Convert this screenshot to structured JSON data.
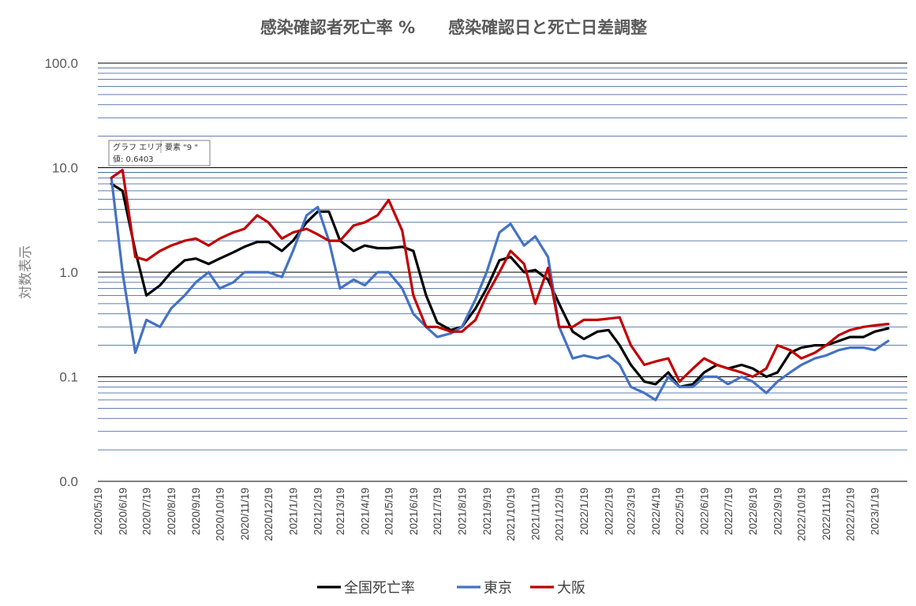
{
  "chart_data": {
    "type": "line",
    "title": "感染確認者死亡率 %　　感染確認日と死亡日差調整",
    "ylabel": "対数表示",
    "xlabel": "",
    "yscale": "log",
    "ylim": [
      0.01,
      100
    ],
    "grid": true,
    "legend_position": "bottom",
    "y_ticks": [
      {
        "value": 100,
        "label": "100.0"
      },
      {
        "value": 10,
        "label": "10.0"
      },
      {
        "value": 1,
        "label": "1.0"
      },
      {
        "value": 0.1,
        "label": "0.1"
      },
      {
        "value": 0.01,
        "label": "0.0"
      }
    ],
    "x_tick_labels": [
      "2020/5/19",
      "2020/6/19",
      "2020/7/19",
      "2020/8/19",
      "2020/9/19",
      "2020/10/19",
      "2020/11/19",
      "2020/12/19",
      "2021/1/19",
      "2021/2/19",
      "2021/3/19",
      "2021/4/19",
      "2021/5/19",
      "2021/6/19",
      "2021/7/19",
      "2021/8/19",
      "2021/9/19",
      "2021/10/19",
      "2021/11/19",
      "2021/12/19",
      "2022/1/19",
      "2022/2/19",
      "2022/3/19",
      "2022/4/19",
      "2022/5/19",
      "2022/6/19",
      "2022/7/19",
      "2022/8/19",
      "2022/9/19",
      "2022/10/19",
      "2022/11/19",
      "2022/12/19",
      "2023/1/19"
    ],
    "x": [
      "2020/6/5",
      "2020/6/19",
      "2020/7/5",
      "2020/7/19",
      "2020/8/5",
      "2020/8/19",
      "2020/9/5",
      "2020/9/19",
      "2020/10/5",
      "2020/10/19",
      "2020/11/5",
      "2020/11/19",
      "2020/12/5",
      "2020/12/19",
      "2021/1/5",
      "2021/1/19",
      "2021/2/5",
      "2021/2/19",
      "2021/3/5",
      "2021/3/19",
      "2021/4/5",
      "2021/4/19",
      "2021/5/5",
      "2021/5/19",
      "2021/6/5",
      "2021/6/19",
      "2021/7/5",
      "2021/7/19",
      "2021/8/5",
      "2021/8/19",
      "2021/9/5",
      "2021/9/19",
      "2021/10/5",
      "2021/10/19",
      "2021/11/5",
      "2021/11/19",
      "2021/12/5",
      "2021/12/19",
      "2022/1/5",
      "2022/1/19",
      "2022/2/5",
      "2022/2/19",
      "2022/3/5",
      "2022/3/19",
      "2022/4/5",
      "2022/4/19",
      "2022/5/5",
      "2022/5/19",
      "2022/6/5",
      "2022/6/19",
      "2022/7/5",
      "2022/7/19",
      "2022/8/5",
      "2022/8/19",
      "2022/9/5",
      "2022/9/19",
      "2022/10/5",
      "2022/10/19",
      "2022/11/5",
      "2022/11/19",
      "2022/12/5",
      "2022/12/19",
      "2023/1/5",
      "2023/1/19",
      "2023/2/5"
    ],
    "series": [
      {
        "name": "全国死亡率",
        "color": "#000000",
        "values": [
          7.0,
          6.0,
          1.6,
          0.6,
          0.75,
          1.0,
          1.3,
          1.35,
          1.2,
          1.35,
          1.55,
          1.75,
          1.95,
          1.95,
          1.6,
          2.0,
          3.0,
          3.8,
          3.8,
          2.0,
          1.6,
          1.8,
          1.7,
          1.7,
          1.75,
          1.6,
          0.6,
          0.33,
          0.28,
          0.3,
          0.45,
          0.7,
          1.3,
          1.4,
          1.0,
          1.05,
          0.85,
          0.5,
          0.27,
          0.23,
          0.27,
          0.28,
          0.2,
          0.13,
          0.09,
          0.085,
          0.11,
          0.08,
          0.085,
          0.11,
          0.13,
          0.12,
          0.13,
          0.12,
          0.1,
          0.11,
          0.17,
          0.19,
          0.2,
          0.2,
          0.22,
          0.24,
          0.24,
          0.27,
          0.29
        ]
      },
      {
        "name": "東京",
        "color": "#4472c4",
        "values": [
          8.0,
          1.0,
          0.17,
          0.35,
          0.3,
          0.45,
          0.6,
          0.8,
          1.0,
          0.7,
          0.8,
          1.0,
          1.0,
          1.0,
          0.9,
          1.6,
          3.5,
          4.2,
          2.0,
          0.7,
          0.85,
          0.75,
          1.0,
          1.0,
          0.7,
          0.4,
          0.3,
          0.24,
          0.26,
          0.3,
          0.55,
          1.0,
          2.4,
          2.9,
          1.8,
          2.2,
          1.4,
          0.3,
          0.15,
          0.16,
          0.15,
          0.16,
          0.13,
          0.08,
          0.07,
          0.06,
          0.1,
          0.08,
          0.08,
          0.1,
          0.1,
          0.085,
          0.1,
          0.09,
          0.07,
          0.09,
          0.11,
          0.13,
          0.15,
          0.16,
          0.18,
          0.19,
          0.19,
          0.18,
          0.22
        ]
      },
      {
        "name": "大阪",
        "color": "#c00000",
        "values": [
          8.0,
          9.5,
          1.4,
          1.3,
          1.6,
          1.8,
          2.0,
          2.1,
          1.8,
          2.1,
          2.4,
          2.6,
          3.5,
          3.0,
          2.1,
          2.4,
          2.6,
          2.3,
          2.0,
          2.0,
          2.8,
          3.0,
          3.5,
          4.9,
          2.5,
          0.6,
          0.3,
          0.3,
          0.27,
          0.27,
          0.35,
          0.6,
          1.0,
          1.6,
          1.2,
          0.5,
          1.1,
          0.3,
          0.3,
          0.35,
          0.35,
          0.36,
          0.37,
          0.2,
          0.13,
          0.14,
          0.15,
          0.09,
          0.12,
          0.15,
          0.13,
          0.12,
          0.11,
          0.1,
          0.12,
          0.2,
          0.18,
          0.15,
          0.17,
          0.2,
          0.25,
          0.28,
          0.3,
          0.31,
          0.32
        ]
      }
    ]
  },
  "tooltip": {
    "line1": "グラフ エリア",
    "line2": "要素 \"9 \"",
    "line3": "値: 0.6403"
  }
}
